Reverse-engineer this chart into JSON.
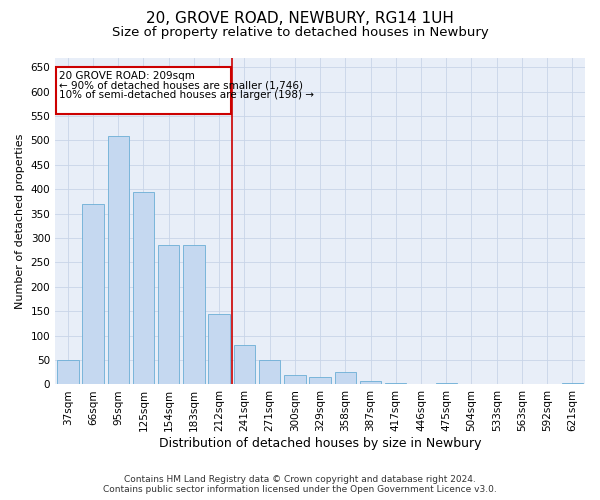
{
  "title": "20, GROVE ROAD, NEWBURY, RG14 1UH",
  "subtitle": "Size of property relative to detached houses in Newbury",
  "xlabel": "Distribution of detached houses by size in Newbury",
  "ylabel": "Number of detached properties",
  "categories": [
    "37sqm",
    "66sqm",
    "95sqm",
    "125sqm",
    "154sqm",
    "183sqm",
    "212sqm",
    "241sqm",
    "271sqm",
    "300sqm",
    "329sqm",
    "358sqm",
    "387sqm",
    "417sqm",
    "446sqm",
    "475sqm",
    "504sqm",
    "533sqm",
    "563sqm",
    "592sqm",
    "621sqm"
  ],
  "values": [
    50,
    370,
    510,
    395,
    285,
    285,
    145,
    80,
    50,
    20,
    15,
    25,
    8,
    2,
    0,
    2,
    0,
    0,
    0,
    0,
    2
  ],
  "bar_color": "#c5d8f0",
  "bar_edge_color": "#6baed6",
  "vline_x_index": 6,
  "vline_color": "#cc0000",
  "annotation_line1": "20 GROVE ROAD: 209sqm",
  "annotation_line2": "← 90% of detached houses are smaller (1,746)",
  "annotation_line3": "10% of semi-detached houses are larger (198) →",
  "annotation_box_color": "#ffffff",
  "annotation_box_edge_color": "#cc0000",
  "ylim": [
    0,
    670
  ],
  "yticks": [
    0,
    50,
    100,
    150,
    200,
    250,
    300,
    350,
    400,
    450,
    500,
    550,
    600,
    650
  ],
  "grid_color": "#c8d4e8",
  "background_color": "#e8eef8",
  "footer_line1": "Contains HM Land Registry data © Crown copyright and database right 2024.",
  "footer_line2": "Contains public sector information licensed under the Open Government Licence v3.0.",
  "title_fontsize": 11,
  "subtitle_fontsize": 9.5,
  "xlabel_fontsize": 9,
  "ylabel_fontsize": 8,
  "tick_fontsize": 7.5,
  "annotation_fontsize": 7.5,
  "footer_fontsize": 6.5
}
